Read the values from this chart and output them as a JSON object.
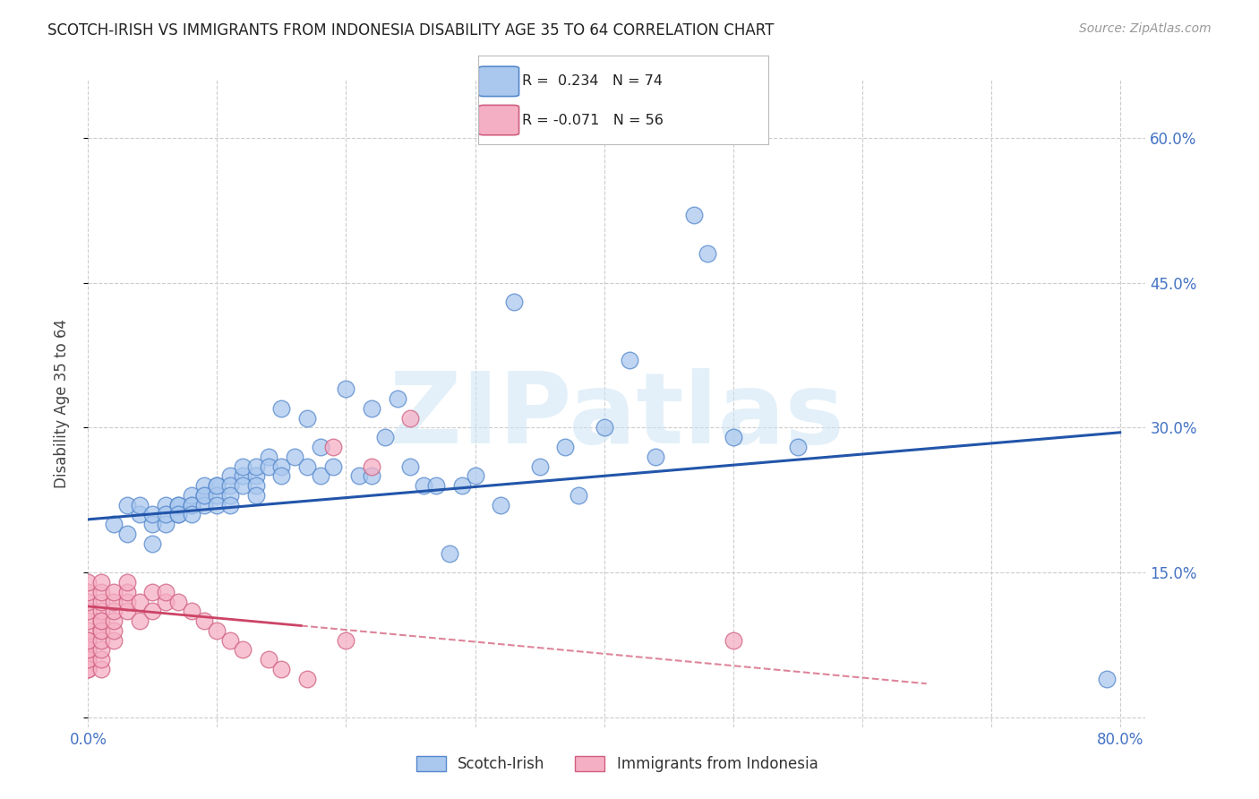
{
  "title": "SCOTCH-IRISH VS IMMIGRANTS FROM INDONESIA DISABILITY AGE 35 TO 64 CORRELATION CHART",
  "source": "Source: ZipAtlas.com",
  "ylabel": "Disability Age 35 to 64",
  "watermark": "ZIPatlas",
  "xlim": [
    0.0,
    0.82
  ],
  "ylim": [
    -0.01,
    0.66
  ],
  "yticks": [
    0.0,
    0.15,
    0.3,
    0.45,
    0.6
  ],
  "ytick_labels": [
    "",
    "15.0%",
    "30.0%",
    "45.0%",
    "60.0%"
  ],
  "xticks": [
    0.0,
    0.1,
    0.2,
    0.3,
    0.4,
    0.5,
    0.6,
    0.7,
    0.8
  ],
  "xtick_labels": [
    "0.0%",
    "",
    "",
    "",
    "",
    "",
    "",
    "",
    "80.0%"
  ],
  "blue_R": 0.234,
  "blue_N": 74,
  "pink_R": -0.071,
  "pink_N": 56,
  "blue_color": "#aac8ee",
  "blue_edge_color": "#5588cc",
  "pink_color": "#f5afc5",
  "pink_edge_color": "#d06080",
  "legend_label_blue": "Scotch-Irish",
  "legend_label_pink": "Immigrants from Indonesia",
  "blue_scatter_x": [
    0.02,
    0.03,
    0.03,
    0.04,
    0.04,
    0.05,
    0.05,
    0.05,
    0.06,
    0.06,
    0.06,
    0.07,
    0.07,
    0.07,
    0.07,
    0.08,
    0.08,
    0.08,
    0.08,
    0.09,
    0.09,
    0.09,
    0.09,
    0.1,
    0.1,
    0.1,
    0.1,
    0.11,
    0.11,
    0.11,
    0.11,
    0.12,
    0.12,
    0.12,
    0.13,
    0.13,
    0.13,
    0.13,
    0.14,
    0.14,
    0.15,
    0.15,
    0.15,
    0.16,
    0.17,
    0.17,
    0.18,
    0.18,
    0.19,
    0.2,
    0.21,
    0.22,
    0.22,
    0.23,
    0.24,
    0.25,
    0.26,
    0.27,
    0.28,
    0.29,
    0.3,
    0.32,
    0.33,
    0.35,
    0.37,
    0.38,
    0.4,
    0.42,
    0.44,
    0.47,
    0.48,
    0.5,
    0.55,
    0.79
  ],
  "blue_scatter_y": [
    0.2,
    0.19,
    0.22,
    0.21,
    0.22,
    0.2,
    0.21,
    0.18,
    0.2,
    0.22,
    0.21,
    0.21,
    0.22,
    0.22,
    0.21,
    0.22,
    0.23,
    0.22,
    0.21,
    0.23,
    0.24,
    0.22,
    0.23,
    0.24,
    0.23,
    0.22,
    0.24,
    0.25,
    0.24,
    0.23,
    0.22,
    0.25,
    0.24,
    0.26,
    0.25,
    0.24,
    0.26,
    0.23,
    0.27,
    0.26,
    0.32,
    0.26,
    0.25,
    0.27,
    0.26,
    0.31,
    0.28,
    0.25,
    0.26,
    0.34,
    0.25,
    0.32,
    0.25,
    0.29,
    0.33,
    0.26,
    0.24,
    0.24,
    0.17,
    0.24,
    0.25,
    0.22,
    0.43,
    0.26,
    0.28,
    0.23,
    0.3,
    0.37,
    0.27,
    0.52,
    0.48,
    0.29,
    0.28,
    0.04
  ],
  "pink_scatter_x": [
    0.0,
    0.0,
    0.0,
    0.0,
    0.0,
    0.0,
    0.0,
    0.0,
    0.0,
    0.0,
    0.0,
    0.0,
    0.0,
    0.0,
    0.01,
    0.01,
    0.01,
    0.01,
    0.01,
    0.01,
    0.01,
    0.01,
    0.01,
    0.01,
    0.01,
    0.01,
    0.02,
    0.02,
    0.02,
    0.02,
    0.02,
    0.02,
    0.03,
    0.03,
    0.03,
    0.03,
    0.04,
    0.04,
    0.05,
    0.05,
    0.06,
    0.06,
    0.07,
    0.08,
    0.09,
    0.1,
    0.11,
    0.12,
    0.14,
    0.15,
    0.17,
    0.19,
    0.2,
    0.22,
    0.25,
    0.5
  ],
  "pink_scatter_y": [
    0.05,
    0.06,
    0.07,
    0.08,
    0.09,
    0.1,
    0.11,
    0.12,
    0.13,
    0.14,
    0.05,
    0.06,
    0.07,
    0.08,
    0.09,
    0.1,
    0.11,
    0.12,
    0.13,
    0.14,
    0.05,
    0.06,
    0.07,
    0.08,
    0.09,
    0.1,
    0.08,
    0.09,
    0.1,
    0.11,
    0.12,
    0.13,
    0.11,
    0.12,
    0.13,
    0.14,
    0.1,
    0.12,
    0.11,
    0.13,
    0.12,
    0.13,
    0.12,
    0.11,
    0.1,
    0.09,
    0.08,
    0.07,
    0.06,
    0.05,
    0.04,
    0.28,
    0.08,
    0.26,
    0.31,
    0.08
  ],
  "blue_line": [
    0.0,
    0.205,
    0.8,
    0.295
  ],
  "pink_solid_line": [
    0.0,
    0.115,
    0.165,
    0.095
  ],
  "pink_dash_line": [
    0.165,
    0.095,
    0.65,
    0.035
  ]
}
